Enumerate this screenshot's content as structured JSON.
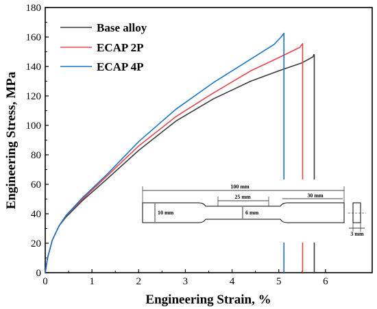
{
  "chart_data": {
    "type": "line",
    "xlabel": "Engineering Strain, %",
    "ylabel": "Engineering Stress, MPa",
    "xlim": [
      0,
      7
    ],
    "ylim": [
      0,
      180
    ],
    "x_ticks": [
      "0",
      "1",
      "2",
      "3",
      "4",
      "5",
      "6"
    ],
    "y_ticks": [
      "0",
      "20",
      "40",
      "60",
      "80",
      "100",
      "120",
      "140",
      "160",
      "180"
    ],
    "grid": false,
    "legend_position": "top-left",
    "series": [
      {
        "name": "Base alloy",
        "color": "#3a3a3a",
        "x": [
          0,
          0.05,
          0.15,
          0.3,
          0.45,
          0.8,
          1.3,
          2.0,
          2.8,
          3.6,
          4.4,
          5.0,
          5.5,
          5.73,
          5.75,
          5.76,
          5.76
        ],
        "y": [
          0,
          10,
          22,
          32,
          38,
          49,
          63,
          83,
          103,
          118,
          130,
          137,
          142.5,
          146.5,
          148,
          148,
          0
        ]
      },
      {
        "name": "ECAP 2P",
        "color": "#e8434a",
        "x": [
          0,
          0.05,
          0.15,
          0.3,
          0.45,
          0.8,
          1.3,
          2.0,
          2.8,
          3.6,
          4.4,
          5.0,
          5.45,
          5.51,
          5.51
        ],
        "y": [
          0,
          10,
          22,
          32,
          39,
          50,
          65,
          86,
          106,
          122,
          137,
          146,
          153,
          155.5,
          0
        ]
      },
      {
        "name": "ECAP 4P",
        "color": "#1a73c8",
        "x": [
          0,
          0.05,
          0.15,
          0.3,
          0.45,
          0.8,
          1.3,
          2.0,
          2.8,
          3.6,
          4.4,
          4.9,
          5.05,
          5.11,
          5.11
        ],
        "y": [
          0,
          10,
          22,
          32,
          39,
          51,
          66,
          89,
          111,
          129,
          145,
          155,
          160,
          162.5,
          0
        ]
      }
    ],
    "specimen_dimensions": [
      "100 mm",
      "25 mm",
      "30 mm",
      "10 mm",
      "6 mm",
      "3 mm"
    ]
  }
}
